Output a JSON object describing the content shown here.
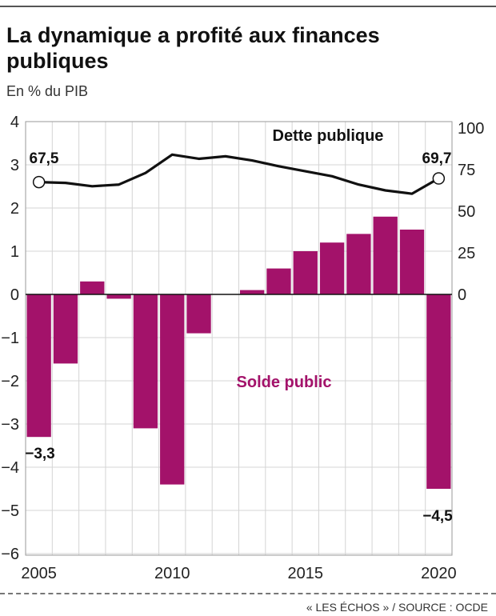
{
  "title": "La dynamique a profité aux finances publiques",
  "subtitle": "En % du PIB",
  "source": "« LES ÉCHOS » / SOURCE : OCDE",
  "colors": {
    "bar": "#a3126a",
    "line": "#111111",
    "grid": "#d4d4d4"
  },
  "chart_data": {
    "type": "bar",
    "x": [
      2005,
      2006,
      2007,
      2008,
      2009,
      2010,
      2011,
      2012,
      2013,
      2014,
      2015,
      2016,
      2017,
      2018,
      2019,
      2020
    ],
    "x_tick_labels": [
      "2005",
      "2010",
      "2015",
      "2020"
    ],
    "series": [
      {
        "name": "Solde public",
        "type": "bar",
        "axis": "left",
        "values": [
          -3.3,
          -1.6,
          0.3,
          -0.1,
          -3.1,
          -4.4,
          -0.9,
          0.0,
          0.1,
          0.6,
          1.0,
          1.2,
          1.4,
          1.8,
          1.5,
          -4.5
        ]
      },
      {
        "name": "Dette publique",
        "type": "line",
        "axis": "right",
        "values": [
          67.5,
          67.0,
          65.0,
          66.0,
          73.0,
          84.0,
          81.5,
          83.0,
          80.5,
          77.0,
          74.0,
          71.0,
          66.0,
          62.5,
          60.5,
          69.7
        ]
      }
    ],
    "left_axis": {
      "ylim": [
        -6,
        4
      ],
      "ticks": [
        "4",
        "3",
        "2",
        "1",
        "0",
        "−1",
        "−2",
        "−3",
        "−4",
        "−5",
        "−6"
      ]
    },
    "right_axis": {
      "ylim": [
        0,
        100
      ],
      "ticks": [
        "100",
        "75",
        "50",
        "25",
        "0"
      ]
    },
    "grid": true,
    "annotations": {
      "debt_start": "67,5",
      "debt_end": "69,7",
      "balance_start": "−3,3",
      "balance_end": "−4,5"
    }
  }
}
